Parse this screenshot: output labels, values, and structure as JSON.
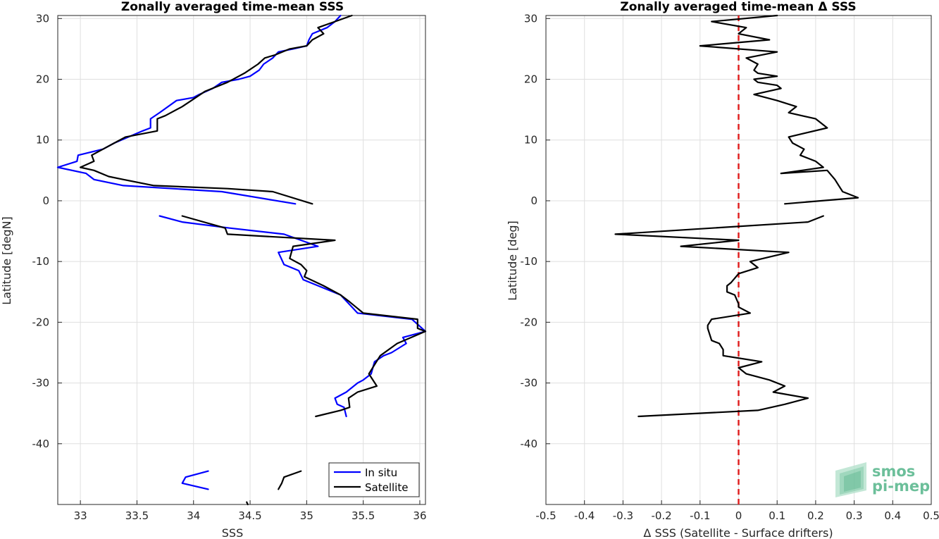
{
  "chart_data": [
    {
      "type": "line",
      "title": "Zonally averaged time-mean SSS",
      "xlabel": "SSS",
      "ylabel": "Latitude [degN]",
      "xlim": [
        32.8,
        36.05
      ],
      "ylim": [
        -50,
        30.5
      ],
      "xticks": [
        33,
        33.5,
        34,
        34.5,
        35,
        35.5,
        36
      ],
      "xtick_labels": [
        "33",
        "33.5",
        "34",
        "34.5",
        "35",
        "35.5",
        "36"
      ],
      "yticks": [
        30,
        20,
        10,
        0,
        -10,
        -20,
        -30,
        -40
      ],
      "ytick_labels": [
        "30",
        "20",
        "10",
        "0",
        "-10",
        "-20",
        "-30",
        "-40"
      ],
      "grid": true,
      "legend": {
        "placement": "bottom-right"
      },
      "series": [
        {
          "name": "In situ",
          "color": "#0000ff",
          "segments": [
            [
              [
                35.3,
                30.5
              ],
              [
                35.25,
                29.5
              ],
              [
                35.18,
                28.5
              ],
              [
                35.05,
                27.5
              ],
              [
                35.02,
                26.5
              ],
              [
                35.0,
                25.5
              ],
              [
                34.88,
                25.0
              ],
              [
                34.75,
                24.5
              ],
              [
                34.7,
                23.5
              ],
              [
                34.62,
                22.5
              ],
              [
                34.58,
                21.5
              ],
              [
                34.5,
                20.5
              ],
              [
                34.4,
                20.0
              ],
              [
                34.25,
                19.5
              ],
              [
                34.17,
                18.5
              ],
              [
                34.05,
                17.5
              ],
              [
                34.0,
                17.0
              ],
              [
                33.85,
                16.5
              ],
              [
                33.7,
                14.5
              ],
              [
                33.62,
                13.5
              ],
              [
                33.62,
                12.0
              ],
              [
                33.55,
                11.5
              ],
              [
                33.3,
                9.5
              ],
              [
                33.2,
                8.5
              ],
              [
                32.98,
                7.5
              ],
              [
                32.97,
                6.5
              ],
              [
                32.8,
                5.5
              ],
              [
                33.05,
                4.5
              ],
              [
                33.12,
                3.5
              ],
              [
                33.38,
                2.5
              ],
              [
                34.25,
                1.5
              ],
              [
                34.9,
                -0.5
              ]
            ],
            [
              [
                33.7,
                -2.5
              ],
              [
                33.9,
                -3.5
              ],
              [
                34.32,
                -4.5
              ],
              [
                34.8,
                -5.5
              ],
              [
                34.95,
                -6.5
              ],
              [
                35.1,
                -7.5
              ],
              [
                34.75,
                -8.5
              ],
              [
                34.8,
                -10.5
              ],
              [
                34.93,
                -11.5
              ],
              [
                34.97,
                -13.0
              ],
              [
                35.3,
                -15.5
              ],
              [
                35.4,
                -17.5
              ],
              [
                35.45,
                -18.5
              ],
              [
                35.93,
                -19.5
              ],
              [
                36.05,
                -21.5
              ],
              [
                35.85,
                -22.5
              ],
              [
                35.88,
                -23.5
              ],
              [
                35.75,
                -25.0
              ],
              [
                35.68,
                -25.5
              ],
              [
                35.6,
                -26.5
              ],
              [
                35.57,
                -28.5
              ],
              [
                35.5,
                -29.5
              ],
              [
                35.45,
                -30.0
              ],
              [
                35.35,
                -31.5
              ],
              [
                35.25,
                -32.5
              ],
              [
                35.27,
                -33.5
              ],
              [
                35.33,
                -34.0
              ],
              [
                35.35,
                -35.5
              ]
            ],
            [
              [
                34.13,
                -44.5
              ],
              [
                33.93,
                -45.5
              ],
              [
                33.9,
                -46.5
              ],
              [
                34.13,
                -47.5
              ]
            ]
          ]
        },
        {
          "name": "Satellite",
          "color": "#000000",
          "segments": [
            [
              [
                35.4,
                30.5
              ],
              [
                35.25,
                29.5
              ],
              [
                35.1,
                28.5
              ],
              [
                35.15,
                27.5
              ],
              [
                35.05,
                26.5
              ],
              [
                35.0,
                25.5
              ],
              [
                34.85,
                25.0
              ],
              [
                34.72,
                24.0
              ],
              [
                34.63,
                23.5
              ],
              [
                34.57,
                22.5
              ],
              [
                34.45,
                21.0
              ],
              [
                34.3,
                19.5
              ],
              [
                34.1,
                18.0
              ],
              [
                34.02,
                17.0
              ],
              [
                33.9,
                15.5
              ],
              [
                33.75,
                14.0
              ],
              [
                33.68,
                13.5
              ],
              [
                33.68,
                11.5
              ],
              [
                33.4,
                10.5
              ],
              [
                33.3,
                9.5
              ],
              [
                33.2,
                8.5
              ],
              [
                33.1,
                7.5
              ],
              [
                33.12,
                6.5
              ],
              [
                33.0,
                5.5
              ],
              [
                33.12,
                5.0
              ],
              [
                33.25,
                4.0
              ],
              [
                33.38,
                3.5
              ],
              [
                33.65,
                2.5
              ],
              [
                34.3,
                2.0
              ],
              [
                34.7,
                1.5
              ],
              [
                35.05,
                -0.5
              ]
            ],
            [
              [
                33.9,
                -2.5
              ],
              [
                34.28,
                -4.5
              ],
              [
                34.3,
                -5.5
              ],
              [
                35.25,
                -6.5
              ],
              [
                34.88,
                -7.5
              ],
              [
                34.85,
                -9.5
              ],
              [
                34.95,
                -10.5
              ],
              [
                35.0,
                -11.5
              ],
              [
                34.98,
                -12.5
              ],
              [
                35.15,
                -14.0
              ],
              [
                35.3,
                -15.5
              ],
              [
                35.37,
                -16.5
              ],
              [
                35.5,
                -18.5
              ],
              [
                35.98,
                -19.5
              ],
              [
                35.98,
                -21.0
              ],
              [
                36.05,
                -21.5
              ],
              [
                35.8,
                -23.5
              ],
              [
                35.65,
                -25.5
              ],
              [
                35.6,
                -27.0
              ],
              [
                35.55,
                -28.5
              ],
              [
                35.62,
                -30.5
              ],
              [
                35.45,
                -31.5
              ],
              [
                35.37,
                -32.5
              ],
              [
                35.38,
                -34.0
              ],
              [
                35.3,
                -34.5
              ],
              [
                35.08,
                -35.5
              ]
            ],
            [
              [
                34.95,
                -44.5
              ],
              [
                34.8,
                -45.5
              ],
              [
                34.78,
                -46.5
              ],
              [
                34.75,
                -47.5
              ]
            ],
            [
              [
                34.47,
                -49.6
              ],
              [
                34.48,
                -50
              ]
            ]
          ]
        }
      ]
    },
    {
      "type": "line",
      "title": "Zonally averaged time-mean Δ SSS",
      "xlabel": "Δ SSS (Satellite - Surface drifters)",
      "ylabel": "Latitude [deg]",
      "xlim": [
        -0.5,
        0.5
      ],
      "ylim": [
        -50,
        30.5
      ],
      "xticks": [
        -0.5,
        -0.4,
        -0.3,
        -0.2,
        -0.1,
        0,
        0.1,
        0.2,
        0.3,
        0.4,
        0.5
      ],
      "xtick_labels": [
        "-0.5",
        "-0.4",
        "-0.3",
        "-0.2",
        "-0.1",
        "0",
        "0.1",
        "0.2",
        "0.3",
        "0.4",
        "0.5"
      ],
      "yticks": [
        30,
        20,
        10,
        0,
        -10,
        -20,
        -30,
        -40
      ],
      "ytick_labels": [
        "30",
        "20",
        "10",
        "0",
        "-10",
        "-20",
        "-30",
        "-40"
      ],
      "grid": true,
      "reference_line": {
        "x": 0,
        "color": "#e02020",
        "style": "dashed"
      },
      "series": [
        {
          "color": "#000000",
          "segments": [
            [
              [
                0.1,
                30.5
              ],
              [
                -0.07,
                29.5
              ],
              [
                0.02,
                28.5
              ],
              [
                0.0,
                27.5
              ],
              [
                0.08,
                26.5
              ],
              [
                -0.1,
                25.5
              ],
              [
                0.1,
                24.5
              ],
              [
                0.02,
                23.5
              ],
              [
                0.05,
                22.5
              ],
              [
                0.04,
                21.5
              ],
              [
                0.05,
                21.0
              ],
              [
                0.1,
                20.5
              ],
              [
                0.04,
                20.0
              ],
              [
                0.05,
                19.5
              ],
              [
                0.1,
                19.0
              ],
              [
                0.11,
                18.5
              ],
              [
                0.04,
                17.5
              ],
              [
                0.1,
                16.5
              ],
              [
                0.15,
                15.5
              ],
              [
                0.13,
                14.5
              ],
              [
                0.2,
                13.5
              ],
              [
                0.23,
                12.0
              ],
              [
                0.13,
                10.5
              ],
              [
                0.14,
                9.5
              ],
              [
                0.17,
                8.5
              ],
              [
                0.16,
                7.5
              ],
              [
                0.2,
                6.5
              ],
              [
                0.22,
                5.5
              ],
              [
                0.11,
                4.5
              ],
              [
                0.23,
                5.0
              ],
              [
                0.25,
                3.5
              ],
              [
                0.26,
                2.5
              ],
              [
                0.27,
                1.5
              ],
              [
                0.31,
                0.5
              ],
              [
                0.12,
                -0.5
              ]
            ],
            [
              [
                0.22,
                -2.5
              ],
              [
                0.18,
                -3.5
              ],
              [
                -0.32,
                -5.5
              ],
              [
                0.0,
                -6.5
              ],
              [
                -0.15,
                -7.5
              ],
              [
                0.13,
                -8.5
              ],
              [
                0.03,
                -10.0
              ],
              [
                0.05,
                -11.0
              ],
              [
                0.0,
                -12.0
              ],
              [
                -0.02,
                -13.5
              ],
              [
                -0.03,
                -14.0
              ],
              [
                -0.03,
                -15.0
              ],
              [
                -0.01,
                -15.5
              ],
              [
                0.0,
                -17.0
              ],
              [
                0.0,
                -17.5
              ],
              [
                0.03,
                -18.5
              ],
              [
                -0.07,
                -19.5
              ],
              [
                -0.08,
                -20.5
              ],
              [
                -0.08,
                -21.0
              ],
              [
                -0.07,
                -23.0
              ],
              [
                -0.05,
                -23.5
              ],
              [
                -0.04,
                -24.5
              ],
              [
                -0.04,
                -25.5
              ],
              [
                0.06,
                -26.5
              ],
              [
                0.0,
                -27.5
              ],
              [
                0.02,
                -28.5
              ],
              [
                0.08,
                -29.5
              ],
              [
                0.12,
                -30.5
              ],
              [
                0.09,
                -31.5
              ],
              [
                0.18,
                -32.5
              ],
              [
                0.12,
                -33.5
              ],
              [
                0.05,
                -34.5
              ],
              [
                -0.26,
                -35.5
              ]
            ]
          ]
        }
      ]
    }
  ],
  "legend": {
    "items": [
      {
        "label": "In situ",
        "color": "#0000ff"
      },
      {
        "label": "Satellite",
        "color": "#000000"
      }
    ]
  },
  "logo": {
    "line1": "smos",
    "line2": "pi-mep",
    "color": "#6cbf9a"
  }
}
